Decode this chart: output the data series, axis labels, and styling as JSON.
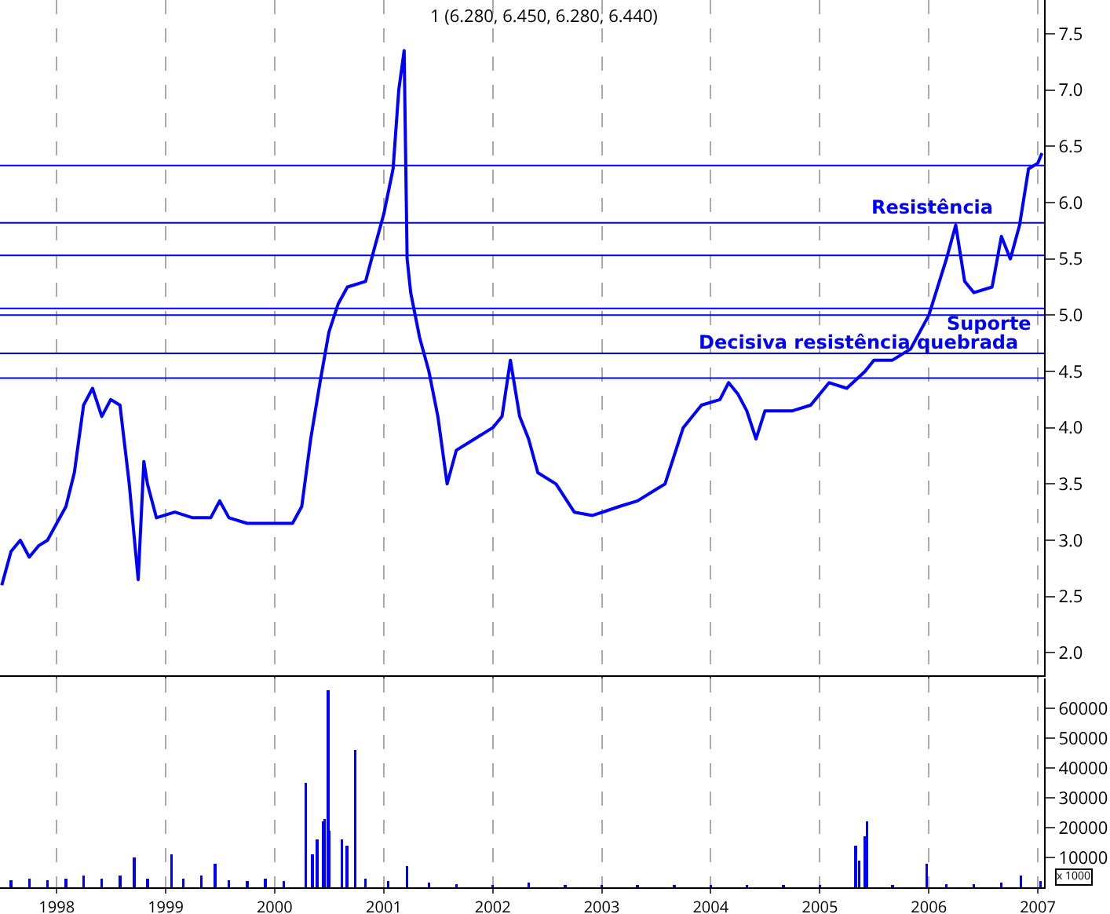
{
  "chart_data": [
    {
      "type": "line",
      "title": "1 (6.280, 6.450, 6.280, 6.440)",
      "grid": "x",
      "legend": false,
      "tick_labels": "y",
      "line_style": "solid",
      "xlim": [
        "1997-06-25",
        "2007-01-22"
      ],
      "xticks": [
        {
          "value": "1998-01-01",
          "label": null
        },
        {
          "value": "1999-01-01",
          "label": null
        },
        {
          "value": "2000-01-01",
          "label": null
        },
        {
          "value": "2001-01-01",
          "label": null
        },
        {
          "value": "2002-01-01",
          "label": null
        },
        {
          "value": "2003-01-01",
          "label": null
        },
        {
          "value": "2004-01-01",
          "label": null
        },
        {
          "value": "2005-01-01",
          "label": null
        },
        {
          "value": "2006-01-01",
          "label": null
        },
        {
          "value": "2007-01-01",
          "label": null
        }
      ],
      "ylim": [
        1.8,
        7.8
      ],
      "yticks": [
        {
          "value": 2,
          "label": "2.0"
        },
        2.5,
        {
          "value": 3,
          "label": "3.0"
        },
        3.5,
        {
          "value": 4,
          "label": "4.0"
        },
        4.5,
        {
          "value": 5,
          "label": "5.0"
        },
        5.5,
        {
          "value": 6,
          "label": "6.0"
        },
        6.5,
        {
          "value": 7,
          "label": "7.0"
        },
        7.5
      ],
      "x": [
        "1997-07-01",
        "1997-08-01",
        "1997-09-01",
        "1997-10-01",
        "1997-11-01",
        "1997-12-01",
        "1998-02-01",
        "1998-03-01",
        "1998-04-01",
        "1998-05-01",
        "1998-06-01",
        "1998-07-01",
        "1998-08-01",
        "1998-09-01",
        "1998-10-01",
        "1998-10-20",
        "1998-11-01",
        "1998-12-01",
        "1999-02-01",
        "1999-04-01",
        "1999-06-01",
        "1999-07-01",
        "1999-08-01",
        "1999-10-01",
        "1999-12-01",
        "2000-02-01",
        "2000-03-01",
        "2000-04-01",
        "2000-05-01",
        "2000-06-01",
        "2000-07-01",
        "2000-08-01",
        "2000-09-01",
        "2000-11-01",
        "2000-12-01",
        "2001-01-01",
        "2001-02-01",
        "2001-02-20",
        "2001-03-10",
        "2001-03-20",
        "2001-04-01",
        "2001-05-01",
        "2001-06-01",
        "2001-07-01",
        "2001-08-01",
        "2001-09-01",
        "2001-11-01",
        "2002-01-01",
        "2002-02-01",
        "2002-03-01",
        "2002-04-01",
        "2002-05-01",
        "2002-06-01",
        "2002-08-01",
        "2002-10-01",
        "2002-12-01",
        "2003-03-01",
        "2003-05-01",
        "2003-07-01",
        "2003-08-01",
        "2003-10-01",
        "2003-12-01",
        "2004-02-01",
        "2004-03-01",
        "2004-04-01",
        "2004-05-01",
        "2004-06-01",
        "2004-07-01",
        "2004-10-01",
        "2004-12-01",
        "2005-02-01",
        "2005-04-01",
        "2005-06-01",
        "2005-07-01",
        "2005-09-01",
        "2005-11-01",
        "2006-01-01",
        "2006-03-01",
        "2006-04-01",
        "2006-05-01",
        "2006-06-01",
        "2006-08-01",
        "2006-09-01",
        "2006-10-01",
        "2006-11-01",
        "2006-12-01",
        "2007-01-01",
        "2007-01-15"
      ],
      "series": [
        {
          "color": "#0000ff",
          "values": [
            2.6,
            2.9,
            3.0,
            2.85,
            2.95,
            3.0,
            3.3,
            3.6,
            4.2,
            4.35,
            4.1,
            4.25,
            4.2,
            3.5,
            2.65,
            3.7,
            3.5,
            3.2,
            3.25,
            3.2,
            3.2,
            3.35,
            3.2,
            3.15,
            3.15,
            3.15,
            3.15,
            3.3,
            3.9,
            4.4,
            4.85,
            5.1,
            5.25,
            5.3,
            5.6,
            5.9,
            6.3,
            7.0,
            7.35,
            5.5,
            5.2,
            4.8,
            4.5,
            4.1,
            3.5,
            3.8,
            3.9,
            4.0,
            4.1,
            4.6,
            4.1,
            3.9,
            3.6,
            3.5,
            3.25,
            3.22,
            3.3,
            3.35,
            3.45,
            3.5,
            4.0,
            4.2,
            4.25,
            4.4,
            4.3,
            4.15,
            3.9,
            4.15,
            4.15,
            4.2,
            4.4,
            4.35,
            4.5,
            4.6,
            4.6,
            4.7,
            5.0,
            5.5,
            5.8,
            5.3,
            5.2,
            5.25,
            5.7,
            5.5,
            5.8,
            6.3,
            6.35,
            6.44
          ]
        }
      ],
      "ref_lines": [
        {
          "axis": "y",
          "value": 6.33,
          "color": "#0000ff"
        },
        {
          "axis": "y",
          "value": 5.82,
          "color": "#0000ff"
        },
        {
          "axis": "y",
          "value": 5.53,
          "color": "#0000ff"
        },
        {
          "axis": "y",
          "value": 5.06,
          "color": "#0000ff"
        },
        {
          "axis": "y",
          "value": 5.0,
          "color": "#0000ff"
        },
        {
          "axis": "y",
          "value": 4.66,
          "color": "#0000ff"
        },
        {
          "axis": "y",
          "value": 4.44,
          "color": "#0000ff"
        }
      ],
      "annotations": [
        "Decisiva resistência quebrada",
        "Resistência",
        "Suporte"
      ]
    },
    {
      "type": "bar",
      "grid": "x",
      "legend": false,
      "xlim": [
        "1997-06-25",
        "2007-01-22"
      ],
      "xticks": [
        {
          "value": "1998-01-01",
          "label": "1998"
        },
        {
          "value": "1999-01-01",
          "label": "1999"
        },
        {
          "value": "2000-01-01",
          "label": "2000"
        },
        {
          "value": "2001-01-01",
          "label": "2001"
        },
        {
          "value": "2002-01-01",
          "label": "2002"
        },
        {
          "value": "2003-01-01",
          "label": "2003"
        },
        {
          "value": "2004-01-01",
          "label": "2004"
        },
        {
          "value": "2005-01-01",
          "label": "2005"
        },
        {
          "value": "2006-01-01",
          "label": "2006"
        },
        {
          "value": "2007-01-01",
          "label": "2007"
        }
      ],
      "ylim": [
        0,
        70000
      ],
      "yticks": [
        10000,
        20000,
        30000,
        40000,
        50000,
        60000
      ],
      "annotations": [
        "x 1000"
      ],
      "x": [
        "1997-08-01",
        "1997-10-01",
        "1997-12-01",
        "1998-02-01",
        "1998-04-01",
        "1998-06-01",
        "1998-08-01",
        "1998-09-18",
        "1998-11-01",
        "1999-01-20",
        "1999-03-01",
        "1999-05-01",
        "1999-06-16",
        "1999-08-01",
        "1999-10-01",
        "1999-12-01",
        "2000-02-01",
        "2000-04-15",
        "2000-05-07",
        "2000-05-22",
        "2000-06-13",
        "2000-06-17",
        "2000-06-28",
        "2000-07-01",
        "2000-08-14",
        "2000-08-31",
        "2000-09-27",
        "2000-11-01",
        "2001-01-15",
        "2001-03-20",
        "2001-06-01",
        "2001-09-01",
        "2002-01-01",
        "2002-05-01",
        "2002-09-01",
        "2003-01-01",
        "2003-05-01",
        "2003-09-01",
        "2004-01-01",
        "2004-05-01",
        "2004-09-01",
        "2005-01-01",
        "2005-05-01",
        "2005-05-12",
        "2005-05-31",
        "2005-06-08",
        "2005-09-01",
        "2005-12-25",
        "2006-03-01",
        "2006-06-01",
        "2006-09-01",
        "2006-11-05",
        "2007-01-10"
      ],
      "series": [
        {
          "color": "#0000ff",
          "values": [
            2500,
            3000,
            2500,
            3000,
            4000,
            3000,
            4000,
            10000,
            3000,
            11000,
            3000,
            4000,
            8000,
            2500,
            2000,
            3000,
            2000,
            35000,
            11000,
            16000,
            22000,
            23000,
            66000,
            19000,
            16000,
            14000,
            46000,
            3000,
            2000,
            7000,
            1500,
            1000,
            800,
            1500,
            800,
            800,
            800,
            800,
            800,
            800,
            800,
            800,
            14000,
            9000,
            17000,
            22000,
            800,
            8000,
            1000,
            1000,
            1500,
            4000,
            2000
          ]
        }
      ]
    }
  ]
}
